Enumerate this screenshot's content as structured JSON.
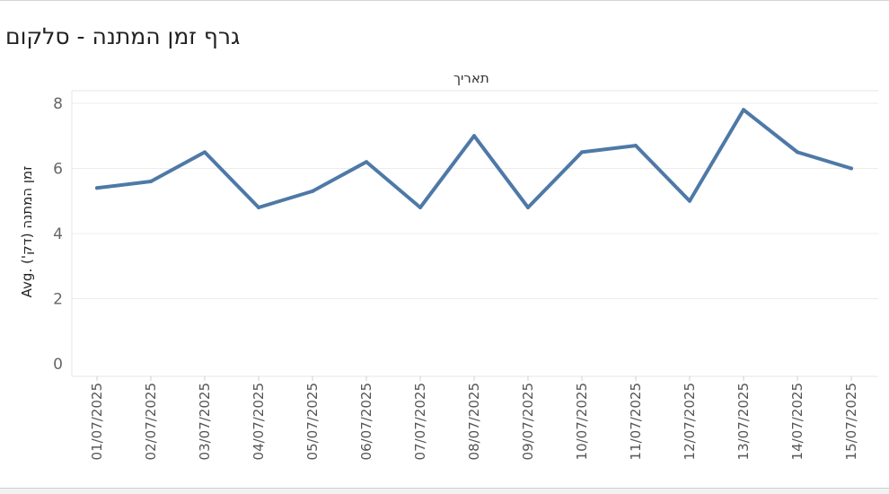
{
  "page": {
    "title": "גרף זמן המתנה - סלקום"
  },
  "chart_data": {
    "type": "line",
    "column_header": "תאריך",
    "ylabel": "Avg. זמן המתנה (דק')",
    "ylim": [
      0,
      8
    ],
    "yticks": [
      0,
      2,
      4,
      6,
      8
    ],
    "grid": true,
    "line_color": "#4e79a7",
    "categories": [
      "01/07/2025",
      "02/07/2025",
      "03/07/2025",
      "04/07/2025",
      "05/07/2025",
      "06/07/2025",
      "07/07/2025",
      "08/07/2025",
      "09/07/2025",
      "10/07/2025",
      "11/07/2025",
      "12/07/2025",
      "13/07/2025",
      "14/07/2025",
      "15/07/2025"
    ],
    "series": [
      {
        "values": [
          5.4,
          5.6,
          6.5,
          4.8,
          5.3,
          6.2,
          4.8,
          7.0,
          4.8,
          6.5,
          6.7,
          5.0,
          7.8,
          6.5,
          6.0
        ]
      }
    ]
  }
}
